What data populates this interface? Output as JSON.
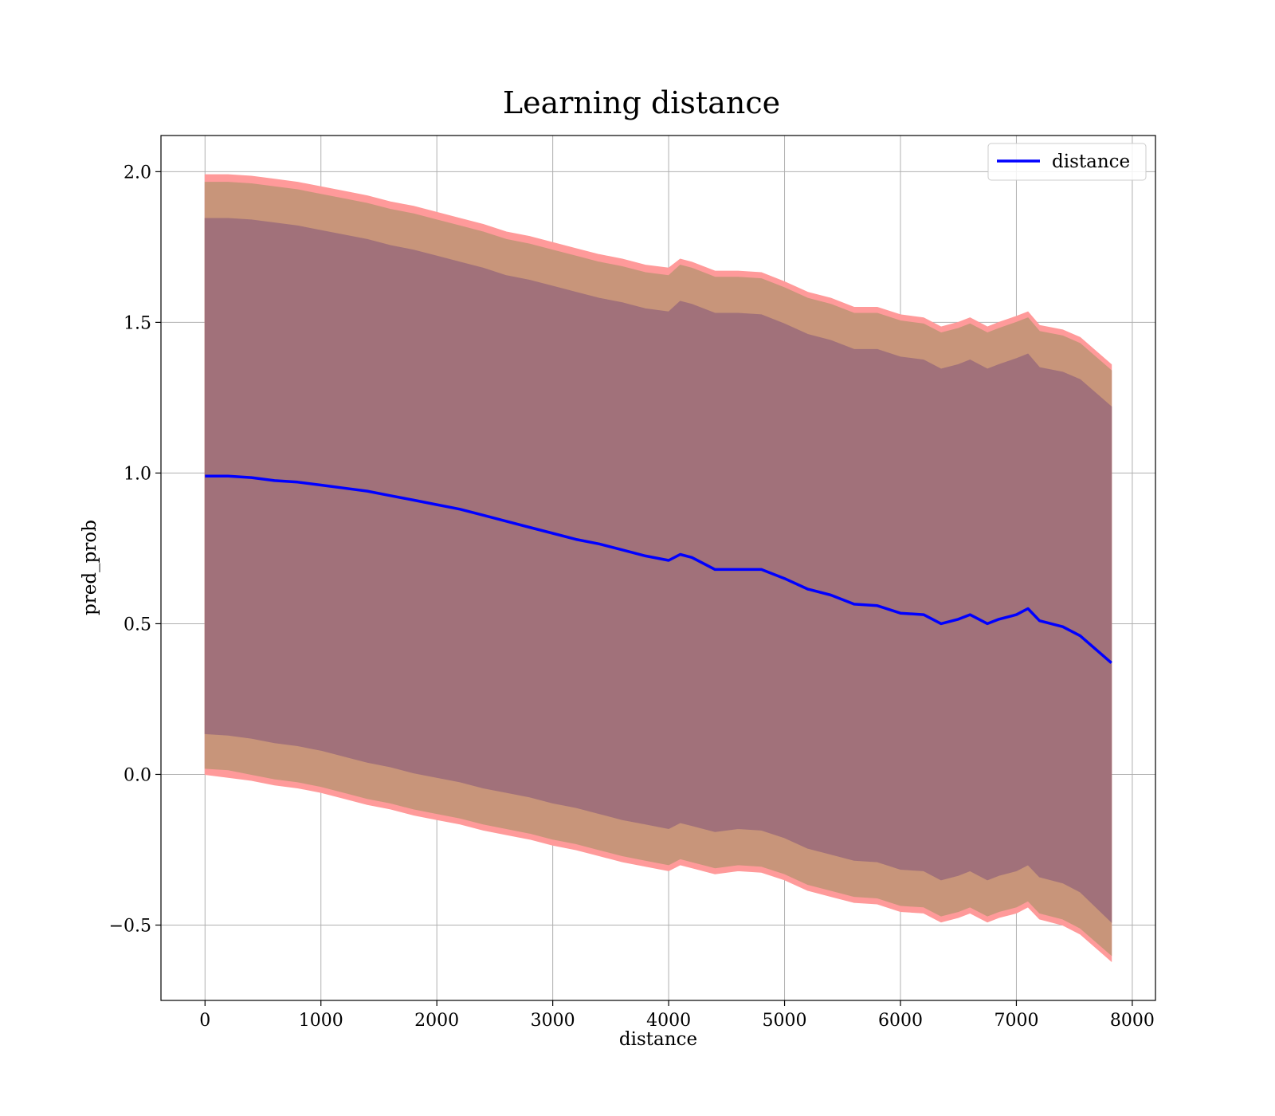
{
  "chart_data": {
    "type": "line",
    "title": "Learning distance",
    "xlabel": "distance",
    "ylabel": "pred_prob",
    "xlim": [
      -380,
      8200
    ],
    "ylim": [
      -0.75,
      2.12
    ],
    "xticks": [
      0,
      1000,
      2000,
      3000,
      4000,
      5000,
      6000,
      7000,
      8000
    ],
    "yticks": [
      -0.5,
      0.0,
      0.5,
      1.0,
      1.5,
      2.0
    ],
    "xtick_labels": [
      "0",
      "1000",
      "2000",
      "3000",
      "4000",
      "5000",
      "6000",
      "7000",
      "8000"
    ],
    "ytick_labels": [
      "−0.5",
      "0.0",
      "0.5",
      "1.0",
      "1.5",
      "2.0"
    ],
    "grid": true,
    "legend": {
      "position": "top-right",
      "entries": [
        "distance"
      ]
    },
    "colors": {
      "line": "#0000ff",
      "band_outer": "#ff9a9a",
      "band_mid": "#c8957a",
      "band_inner": "#a1717a"
    },
    "series": [
      {
        "name": "distance",
        "x": [
          0,
          200,
          400,
          600,
          800,
          1000,
          1200,
          1400,
          1600,
          1800,
          2000,
          2200,
          2400,
          2600,
          2800,
          3000,
          3200,
          3400,
          3600,
          3800,
          4000,
          4100,
          4200,
          4400,
          4600,
          4800,
          5000,
          5200,
          5400,
          5600,
          5800,
          6000,
          6200,
          6350,
          6500,
          6600,
          6750,
          6850,
          7000,
          7100,
          7200,
          7400,
          7550,
          7820
        ],
        "y": [
          0.99,
          0.99,
          0.985,
          0.975,
          0.97,
          0.96,
          0.95,
          0.94,
          0.925,
          0.91,
          0.895,
          0.88,
          0.86,
          0.84,
          0.82,
          0.8,
          0.78,
          0.765,
          0.745,
          0.725,
          0.71,
          0.73,
          0.72,
          0.68,
          0.68,
          0.68,
          0.65,
          0.615,
          0.595,
          0.565,
          0.56,
          0.535,
          0.53,
          0.5,
          0.515,
          0.53,
          0.5,
          0.515,
          0.53,
          0.55,
          0.51,
          0.49,
          0.46,
          0.37
        ]
      }
    ],
    "bands": [
      {
        "role": "outer",
        "lower": [
          0.0,
          -0.01,
          -0.02,
          -0.035,
          -0.045,
          -0.06,
          -0.08,
          -0.1,
          -0.115,
          -0.135,
          -0.15,
          -0.165,
          -0.185,
          -0.2,
          -0.215,
          -0.235,
          -0.25,
          -0.27,
          -0.29,
          -0.305,
          -0.32,
          -0.3,
          -0.31,
          -0.33,
          -0.32,
          -0.325,
          -0.35,
          -0.385,
          -0.405,
          -0.425,
          -0.43,
          -0.455,
          -0.46,
          -0.49,
          -0.475,
          -0.46,
          -0.49,
          -0.475,
          -0.46,
          -0.44,
          -0.48,
          -0.5,
          -0.53,
          -0.62
        ],
        "upper": [
          1.99,
          1.99,
          1.985,
          1.975,
          1.965,
          1.95,
          1.935,
          1.92,
          1.9,
          1.885,
          1.865,
          1.845,
          1.825,
          1.8,
          1.785,
          1.765,
          1.745,
          1.725,
          1.71,
          1.69,
          1.68,
          1.71,
          1.7,
          1.67,
          1.67,
          1.665,
          1.635,
          1.6,
          1.58,
          1.55,
          1.55,
          1.525,
          1.515,
          1.485,
          1.5,
          1.515,
          1.485,
          1.5,
          1.52,
          1.535,
          1.49,
          1.475,
          1.45,
          1.36
        ]
      },
      {
        "role": "mid",
        "lower": [
          0.02,
          0.015,
          0.0,
          -0.015,
          -0.025,
          -0.04,
          -0.06,
          -0.08,
          -0.095,
          -0.115,
          -0.13,
          -0.145,
          -0.165,
          -0.18,
          -0.195,
          -0.215,
          -0.23,
          -0.25,
          -0.27,
          -0.285,
          -0.3,
          -0.28,
          -0.29,
          -0.31,
          -0.3,
          -0.305,
          -0.33,
          -0.365,
          -0.385,
          -0.405,
          -0.41,
          -0.435,
          -0.44,
          -0.47,
          -0.455,
          -0.44,
          -0.47,
          -0.455,
          -0.44,
          -0.42,
          -0.46,
          -0.48,
          -0.51,
          -0.6
        ],
        "upper": [
          1.965,
          1.965,
          1.96,
          1.95,
          1.94,
          1.925,
          1.91,
          1.895,
          1.875,
          1.86,
          1.84,
          1.82,
          1.8,
          1.775,
          1.76,
          1.74,
          1.72,
          1.7,
          1.685,
          1.665,
          1.655,
          1.69,
          1.68,
          1.65,
          1.65,
          1.645,
          1.615,
          1.58,
          1.56,
          1.53,
          1.53,
          1.505,
          1.495,
          1.465,
          1.48,
          1.495,
          1.465,
          1.48,
          1.5,
          1.515,
          1.47,
          1.455,
          1.43,
          1.34
        ]
      },
      {
        "role": "inner",
        "lower": [
          0.135,
          0.13,
          0.12,
          0.105,
          0.095,
          0.08,
          0.06,
          0.04,
          0.025,
          0.005,
          -0.01,
          -0.025,
          -0.045,
          -0.06,
          -0.075,
          -0.095,
          -0.11,
          -0.13,
          -0.15,
          -0.165,
          -0.18,
          -0.16,
          -0.17,
          -0.19,
          -0.18,
          -0.185,
          -0.21,
          -0.245,
          -0.265,
          -0.285,
          -0.29,
          -0.315,
          -0.32,
          -0.35,
          -0.335,
          -0.32,
          -0.35,
          -0.335,
          -0.32,
          -0.3,
          -0.34,
          -0.36,
          -0.39,
          -0.49
        ],
        "upper": [
          1.845,
          1.845,
          1.84,
          1.83,
          1.82,
          1.805,
          1.79,
          1.775,
          1.755,
          1.74,
          1.72,
          1.7,
          1.68,
          1.655,
          1.64,
          1.62,
          1.6,
          1.58,
          1.565,
          1.545,
          1.535,
          1.57,
          1.56,
          1.53,
          1.53,
          1.525,
          1.495,
          1.46,
          1.44,
          1.41,
          1.41,
          1.385,
          1.375,
          1.345,
          1.36,
          1.375,
          1.345,
          1.36,
          1.38,
          1.395,
          1.35,
          1.335,
          1.31,
          1.22
        ]
      }
    ]
  }
}
